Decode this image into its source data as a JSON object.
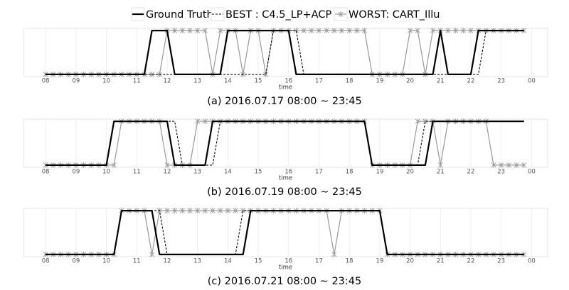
{
  "legend": [
    {
      "name": "Ground Truth",
      "color": "#000000",
      "dashed": false,
      "markers": false,
      "width": 2.2
    },
    {
      "name": "BEST : C4.5_LP+ACP",
      "color": "#000000",
      "dashed": true,
      "markers": false,
      "width": 1.1
    },
    {
      "name": "WORST: CART_Illu",
      "color": "#999999",
      "dashed": false,
      "markers": true,
      "width": 1.2
    }
  ],
  "chart_data": [
    {
      "type": "line",
      "caption": "(a) 2016.07.17 08:00 ~ 23:45",
      "xlabel": "time",
      "xlim": [
        7.27,
        24.53
      ],
      "ylim": [
        -0.05,
        1.05
      ],
      "grid": true,
      "xticks": [
        {
          "value": 8,
          "label": "08"
        },
        {
          "value": 9,
          "label": "09"
        },
        10,
        11,
        12,
        13,
        14,
        15,
        16,
        17,
        18,
        19,
        20,
        21,
        22,
        23,
        {
          "value": 24,
          "label": "00"
        }
      ],
      "x": [
        8,
        8.25,
        8.5,
        8.75,
        9,
        9.25,
        9.5,
        9.75,
        10,
        10.25,
        10.5,
        10.75,
        11,
        11.25,
        11.5,
        11.75,
        12,
        12.25,
        12.5,
        12.75,
        13,
        13.25,
        13.5,
        13.75,
        14,
        14.25,
        14.5,
        14.75,
        15,
        15.25,
        15.5,
        15.75,
        16,
        16.25,
        16.5,
        16.75,
        17,
        17.25,
        17.5,
        17.75,
        18,
        18.25,
        18.5,
        18.75,
        19,
        19.25,
        19.5,
        19.75,
        20,
        20.25,
        20.5,
        20.75,
        21,
        21.25,
        21.5,
        21.75,
        22,
        22.25,
        22.5,
        22.75,
        23,
        23.25,
        23.5,
        23.75
      ],
      "series": [
        {
          "values": [
            0,
            0,
            0,
            0,
            0,
            0,
            0,
            0,
            0,
            0,
            0,
            0,
            0,
            0,
            1,
            1,
            1,
            0,
            0,
            0,
            0,
            0,
            0,
            0,
            1,
            1,
            1,
            1,
            1,
            1,
            1,
            1,
            1,
            0,
            0,
            0,
            0,
            0,
            0,
            0,
            0,
            0,
            0,
            0,
            0,
            0,
            0,
            0,
            0,
            0,
            0,
            0,
            1,
            0,
            0,
            0,
            0,
            1,
            1,
            1,
            1,
            1,
            1,
            1
          ]
        },
        {
          "values": [
            0,
            0,
            0,
            0,
            0,
            0,
            0,
            0,
            0,
            0,
            0,
            0,
            0,
            0,
            0,
            0,
            0,
            0,
            0,
            0,
            0,
            0,
            0,
            0,
            0,
            0,
            0,
            0,
            0,
            0,
            1,
            1,
            1,
            1,
            0,
            0,
            0,
            0,
            0,
            0,
            0,
            0,
            0,
            0,
            0,
            0,
            0,
            0,
            0,
            0,
            0,
            0,
            0,
            0,
            0,
            0,
            0,
            0,
            1,
            1,
            1,
            1,
            1,
            1
          ]
        },
        {
          "values": [
            0,
            0,
            0,
            0,
            0,
            0,
            0,
            0,
            0,
            0,
            0,
            0,
            0,
            0,
            0,
            0,
            1,
            1,
            1,
            1,
            1,
            1,
            0,
            1,
            1,
            1,
            0,
            1,
            1,
            0,
            1,
            1,
            1,
            1,
            1,
            1,
            1,
            1,
            1,
            1,
            1,
            1,
            1,
            0,
            0,
            0,
            0,
            0,
            1,
            1,
            0,
            1,
            1,
            1,
            1,
            1,
            1,
            1,
            1,
            1,
            1,
            1,
            1,
            1
          ]
        }
      ]
    },
    {
      "type": "line",
      "caption": "(b) 2016.07.19 08:00 ~ 23:45",
      "xlabel": "time",
      "xlim": [
        7.27,
        24.53
      ],
      "ylim": [
        -0.05,
        1.05
      ],
      "grid": true,
      "xticks": [
        {
          "value": 8,
          "label": "08"
        },
        {
          "value": 9,
          "label": "09"
        },
        10,
        11,
        12,
        13,
        14,
        15,
        16,
        17,
        18,
        19,
        20,
        21,
        22,
        23,
        {
          "value": 24,
          "label": "00"
        }
      ],
      "x": [
        8,
        8.25,
        8.5,
        8.75,
        9,
        9.25,
        9.5,
        9.75,
        10,
        10.25,
        10.5,
        10.75,
        11,
        11.25,
        11.5,
        11.75,
        12,
        12.25,
        12.5,
        12.75,
        13,
        13.25,
        13.5,
        13.75,
        14,
        14.25,
        14.5,
        14.75,
        15,
        15.25,
        15.5,
        15.75,
        16,
        16.25,
        16.5,
        16.75,
        17,
        17.25,
        17.5,
        17.75,
        18,
        18.25,
        18.5,
        18.75,
        19,
        19.25,
        19.5,
        19.75,
        20,
        20.25,
        20.5,
        20.75,
        21,
        21.25,
        21.5,
        21.75,
        22,
        22.25,
        22.5,
        22.75,
        23,
        23.25,
        23.5,
        23.75
      ],
      "series": [
        {
          "values": [
            0,
            0,
            0,
            0,
            0,
            0,
            0,
            0,
            0,
            1,
            1,
            1,
            1,
            1,
            1,
            1,
            1,
            0,
            0,
            0,
            0,
            0,
            1,
            1,
            1,
            1,
            1,
            1,
            1,
            1,
            1,
            1,
            1,
            1,
            1,
            1,
            1,
            1,
            1,
            1,
            1,
            1,
            1,
            0,
            0,
            0,
            0,
            0,
            0,
            0,
            0,
            1,
            1,
            1,
            1,
            1,
            1,
            1,
            1,
            1,
            1,
            1,
            1,
            1
          ]
        },
        {
          "values": [
            0,
            0,
            0,
            0,
            0,
            0,
            0,
            0,
            0,
            1,
            1,
            1,
            1,
            1,
            1,
            1,
            1,
            1,
            0,
            0,
            0,
            0,
            0,
            1,
            1,
            1,
            1,
            1,
            1,
            1,
            1,
            1,
            1,
            1,
            1,
            1,
            1,
            1,
            1,
            1,
            1,
            1,
            1,
            0,
            0,
            0,
            0,
            0,
            0,
            0,
            1,
            1,
            1,
            1,
            1,
            1,
            1,
            1,
            1,
            1,
            1,
            1,
            1,
            1
          ]
        },
        {
          "values": [
            0,
            0,
            0,
            0,
            0,
            0,
            0,
            0,
            0,
            0,
            1,
            1,
            1,
            1,
            1,
            1,
            0,
            0,
            0,
            0,
            1,
            1,
            1,
            1,
            1,
            1,
            1,
            1,
            1,
            1,
            1,
            1,
            1,
            1,
            1,
            1,
            1,
            1,
            1,
            1,
            1,
            1,
            1,
            0,
            0,
            0,
            0,
            0,
            0,
            1,
            1,
            1,
            0,
            1,
            1,
            1,
            1,
            1,
            1,
            0,
            0,
            0,
            0,
            0
          ]
        }
      ]
    },
    {
      "type": "line",
      "caption": "(c) 2016.07.21 08:00 ~ 23:45",
      "xlabel": "time",
      "xlim": [
        7.27,
        24.53
      ],
      "ylim": [
        -0.05,
        1.05
      ],
      "grid": true,
      "xticks": [
        {
          "value": 8,
          "label": "08"
        },
        {
          "value": 9,
          "label": "09"
        },
        10,
        11,
        12,
        13,
        14,
        15,
        16,
        17,
        18,
        19,
        20,
        21,
        22,
        23,
        {
          "value": 24,
          "label": "00"
        }
      ],
      "x": [
        8,
        8.25,
        8.5,
        8.75,
        9,
        9.25,
        9.5,
        9.75,
        10,
        10.25,
        10.5,
        10.75,
        11,
        11.25,
        11.5,
        11.75,
        12,
        12.25,
        12.5,
        12.75,
        13,
        13.25,
        13.5,
        13.75,
        14,
        14.25,
        14.5,
        14.75,
        15,
        15.25,
        15.5,
        15.75,
        16,
        16.25,
        16.5,
        16.75,
        17,
        17.25,
        17.5,
        17.75,
        18,
        18.25,
        18.5,
        18.75,
        19,
        19.25,
        19.5,
        19.75,
        20,
        20.25,
        20.5,
        20.75,
        21,
        21.25,
        21.5,
        21.75,
        22,
        22.25,
        22.5,
        22.75,
        23,
        23.25,
        23.5,
        23.75
      ],
      "series": [
        {
          "values": [
            0,
            0,
            0,
            0,
            0,
            0,
            0,
            0,
            0,
            0,
            1,
            1,
            1,
            1,
            1,
            0,
            0,
            0,
            0,
            0,
            0,
            0,
            0,
            0,
            0,
            0,
            0,
            1,
            1,
            1,
            1,
            1,
            1,
            1,
            1,
            1,
            1,
            1,
            1,
            1,
            1,
            1,
            1,
            1,
            1,
            0,
            0,
            0,
            0,
            0,
            0,
            0,
            0,
            0,
            0,
            0,
            0,
            0,
            0,
            0,
            0,
            0,
            0,
            0
          ]
        },
        {
          "values": [
            0,
            0,
            0,
            0,
            0,
            0,
            0,
            0,
            0,
            0,
            1,
            1,
            1,
            1,
            1,
            1,
            0,
            0,
            0,
            0,
            0,
            0,
            0,
            0,
            0,
            0,
            1,
            1,
            1,
            1,
            1,
            1,
            1,
            1,
            1,
            1,
            1,
            1,
            1,
            1,
            1,
            1,
            1,
            1,
            1,
            0,
            0,
            0,
            0,
            0,
            0,
            0,
            0,
            0,
            0,
            0,
            0,
            0,
            0,
            0,
            0,
            0,
            0,
            0
          ]
        },
        {
          "values": [
            0,
            0,
            0,
            0,
            0,
            0,
            0,
            0,
            0,
            0,
            1,
            1,
            1,
            1,
            0,
            1,
            1,
            1,
            1,
            1,
            1,
            1,
            1,
            1,
            1,
            1,
            1,
            1,
            1,
            1,
            1,
            1,
            1,
            1,
            1,
            1,
            1,
            1,
            0,
            1,
            1,
            1,
            1,
            1,
            1,
            0,
            0,
            0,
            0,
            0,
            0,
            0,
            0,
            0,
            0,
            0,
            0,
            0,
            0,
            0,
            0,
            0,
            0,
            0
          ]
        }
      ]
    }
  ]
}
